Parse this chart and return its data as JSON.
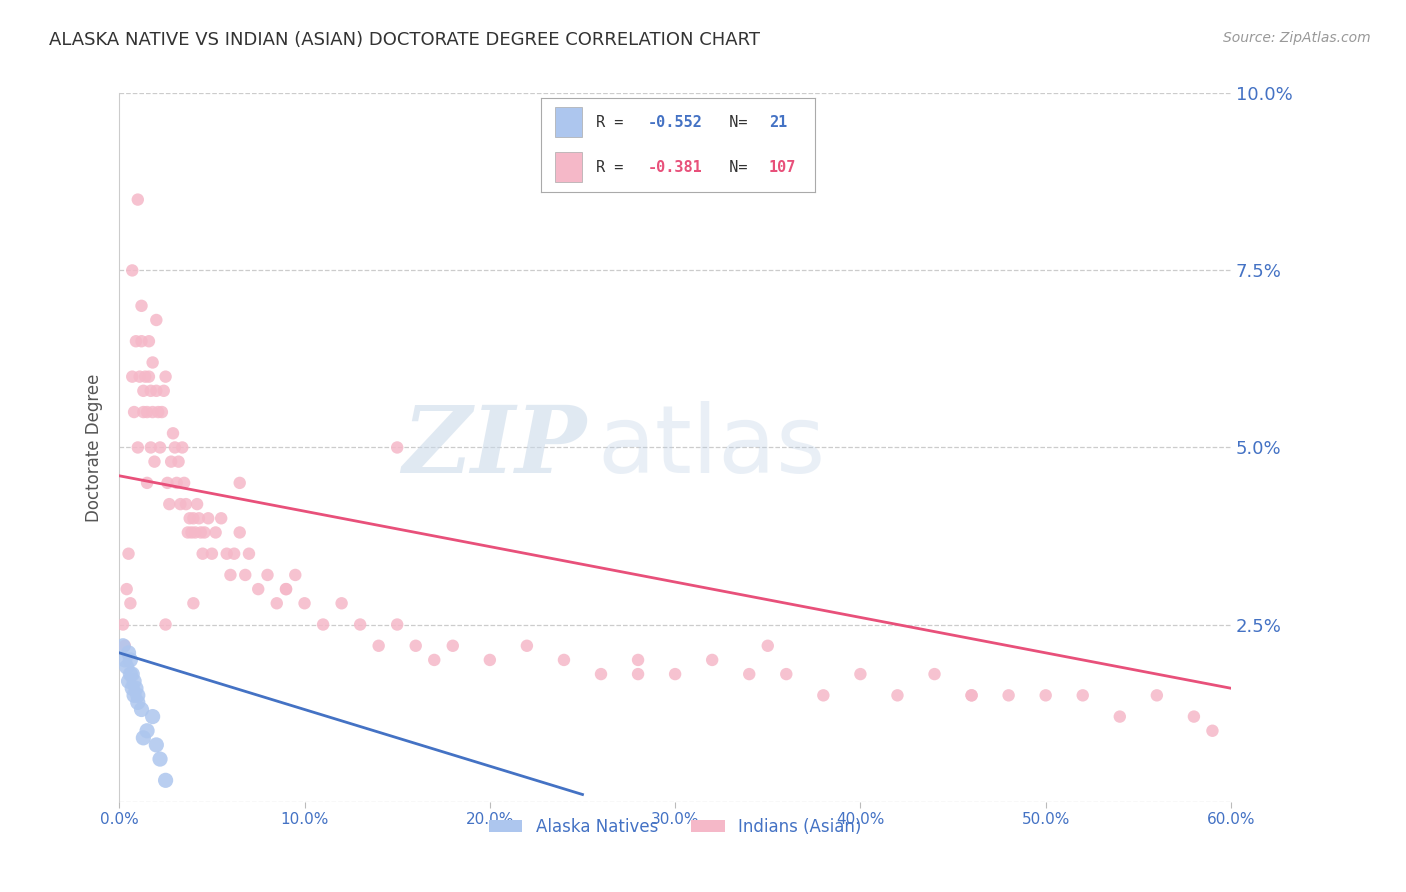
{
  "title": "ALASKA NATIVE VS INDIAN (ASIAN) DOCTORATE DEGREE CORRELATION CHART",
  "source": "Source: ZipAtlas.com",
  "ylabel": "Doctorate Degree",
  "xlim": [
    0.0,
    0.6
  ],
  "ylim": [
    0.0,
    0.1
  ],
  "yticks": [
    0.0,
    0.025,
    0.05,
    0.075,
    0.1
  ],
  "ytick_labels": [
    "",
    "2.5%",
    "5.0%",
    "7.5%",
    "10.0%"
  ],
  "xticks": [
    0.0,
    0.1,
    0.2,
    0.3,
    0.4,
    0.5,
    0.6
  ],
  "xtick_labels": [
    "0.0%",
    "10.0%",
    "20.0%",
    "30.0%",
    "40.0%",
    "50.0%",
    "60.0%"
  ],
  "alaska_color": "#adc6ee",
  "indian_color": "#f5b8c8",
  "alaska_line_color": "#4472c4",
  "indian_line_color": "#e8507a",
  "alaska_R": -0.552,
  "alaska_N": 21,
  "indian_R": -0.381,
  "indian_N": 107,
  "watermark_zip": "ZIP",
  "watermark_atlas": "atlas",
  "legend_label_alaska": "Alaska Natives",
  "legend_label_indian": "Indians (Asian)",
  "alaska_scatter_x": [
    0.002,
    0.003,
    0.004,
    0.005,
    0.005,
    0.006,
    0.006,
    0.007,
    0.007,
    0.008,
    0.008,
    0.009,
    0.01,
    0.01,
    0.012,
    0.013,
    0.015,
    0.018,
    0.02,
    0.022,
    0.025
  ],
  "alaska_scatter_y": [
    0.022,
    0.02,
    0.019,
    0.021,
    0.017,
    0.018,
    0.02,
    0.016,
    0.018,
    0.017,
    0.015,
    0.016,
    0.015,
    0.014,
    0.013,
    0.009,
    0.01,
    0.012,
    0.008,
    0.006,
    0.003
  ],
  "indian_scatter_x": [
    0.002,
    0.003,
    0.004,
    0.005,
    0.006,
    0.007,
    0.007,
    0.008,
    0.009,
    0.01,
    0.01,
    0.011,
    0.012,
    0.012,
    0.013,
    0.013,
    0.014,
    0.015,
    0.015,
    0.016,
    0.016,
    0.017,
    0.017,
    0.018,
    0.018,
    0.019,
    0.02,
    0.02,
    0.021,
    0.022,
    0.023,
    0.024,
    0.025,
    0.026,
    0.027,
    0.028,
    0.029,
    0.03,
    0.031,
    0.032,
    0.033,
    0.034,
    0.035,
    0.036,
    0.037,
    0.038,
    0.039,
    0.04,
    0.041,
    0.042,
    0.043,
    0.044,
    0.045,
    0.046,
    0.048,
    0.05,
    0.052,
    0.055,
    0.058,
    0.06,
    0.062,
    0.065,
    0.068,
    0.07,
    0.075,
    0.08,
    0.085,
    0.09,
    0.095,
    0.1,
    0.11,
    0.12,
    0.13,
    0.14,
    0.15,
    0.16,
    0.17,
    0.18,
    0.2,
    0.22,
    0.24,
    0.26,
    0.28,
    0.3,
    0.32,
    0.34,
    0.36,
    0.38,
    0.4,
    0.42,
    0.44,
    0.46,
    0.48,
    0.5,
    0.52,
    0.54,
    0.56,
    0.58,
    0.59,
    0.35,
    0.28,
    0.46,
    0.09,
    0.04,
    0.025,
    0.065,
    0.15
  ],
  "indian_scatter_y": [
    0.025,
    0.022,
    0.03,
    0.035,
    0.028,
    0.06,
    0.075,
    0.055,
    0.065,
    0.05,
    0.085,
    0.06,
    0.07,
    0.065,
    0.055,
    0.058,
    0.06,
    0.045,
    0.055,
    0.06,
    0.065,
    0.058,
    0.05,
    0.055,
    0.062,
    0.048,
    0.058,
    0.068,
    0.055,
    0.05,
    0.055,
    0.058,
    0.06,
    0.045,
    0.042,
    0.048,
    0.052,
    0.05,
    0.045,
    0.048,
    0.042,
    0.05,
    0.045,
    0.042,
    0.038,
    0.04,
    0.038,
    0.04,
    0.038,
    0.042,
    0.04,
    0.038,
    0.035,
    0.038,
    0.04,
    0.035,
    0.038,
    0.04,
    0.035,
    0.032,
    0.035,
    0.038,
    0.032,
    0.035,
    0.03,
    0.032,
    0.028,
    0.03,
    0.032,
    0.028,
    0.025,
    0.028,
    0.025,
    0.022,
    0.025,
    0.022,
    0.02,
    0.022,
    0.02,
    0.022,
    0.02,
    0.018,
    0.02,
    0.018,
    0.02,
    0.018,
    0.018,
    0.015,
    0.018,
    0.015,
    0.018,
    0.015,
    0.015,
    0.015,
    0.015,
    0.012,
    0.015,
    0.012,
    0.01,
    0.022,
    0.018,
    0.015,
    0.03,
    0.028,
    0.025,
    0.045,
    0.05
  ],
  "background_color": "#ffffff",
  "grid_color": "#cccccc",
  "title_color": "#333333",
  "axis_label_color": "#555555",
  "tick_color": "#4472c4",
  "title_fontsize": 13,
  "source_fontsize": 10,
  "scatter_size_alaska": 120,
  "scatter_size_indian": 80,
  "indian_trend_x0": 0.0,
  "indian_trend_y0": 0.046,
  "indian_trend_x1": 0.6,
  "indian_trend_y1": 0.016,
  "alaska_trend_x0": 0.0,
  "alaska_trend_y0": 0.021,
  "alaska_trend_x1": 0.25,
  "alaska_trend_y1": 0.001
}
